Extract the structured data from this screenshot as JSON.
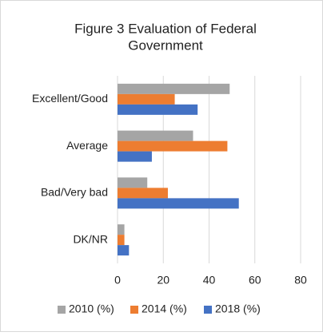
{
  "chart_data": {
    "type": "hbar",
    "title": [
      "Figure 3 Evaluation  of Federal",
      "Government"
    ],
    "categories": [
      "Excellent/Good",
      "Average",
      "Bad/Very bad",
      "DK/NR"
    ],
    "series": [
      {
        "name": "2010 (%)",
        "color": "#a5a5a5",
        "values": [
          49,
          33,
          13,
          3
        ]
      },
      {
        "name": "2014 (%)",
        "color": "#ed7d31",
        "values": [
          25,
          48,
          22,
          3
        ]
      },
      {
        "name": "2018 (%)",
        "color": "#4472c4",
        "values": [
          35,
          15,
          53,
          5
        ]
      }
    ],
    "xlim": [
      0,
      80
    ],
    "xticks": [
      0,
      20,
      40,
      60,
      80
    ],
    "grid": true,
    "legend": "bottom"
  }
}
